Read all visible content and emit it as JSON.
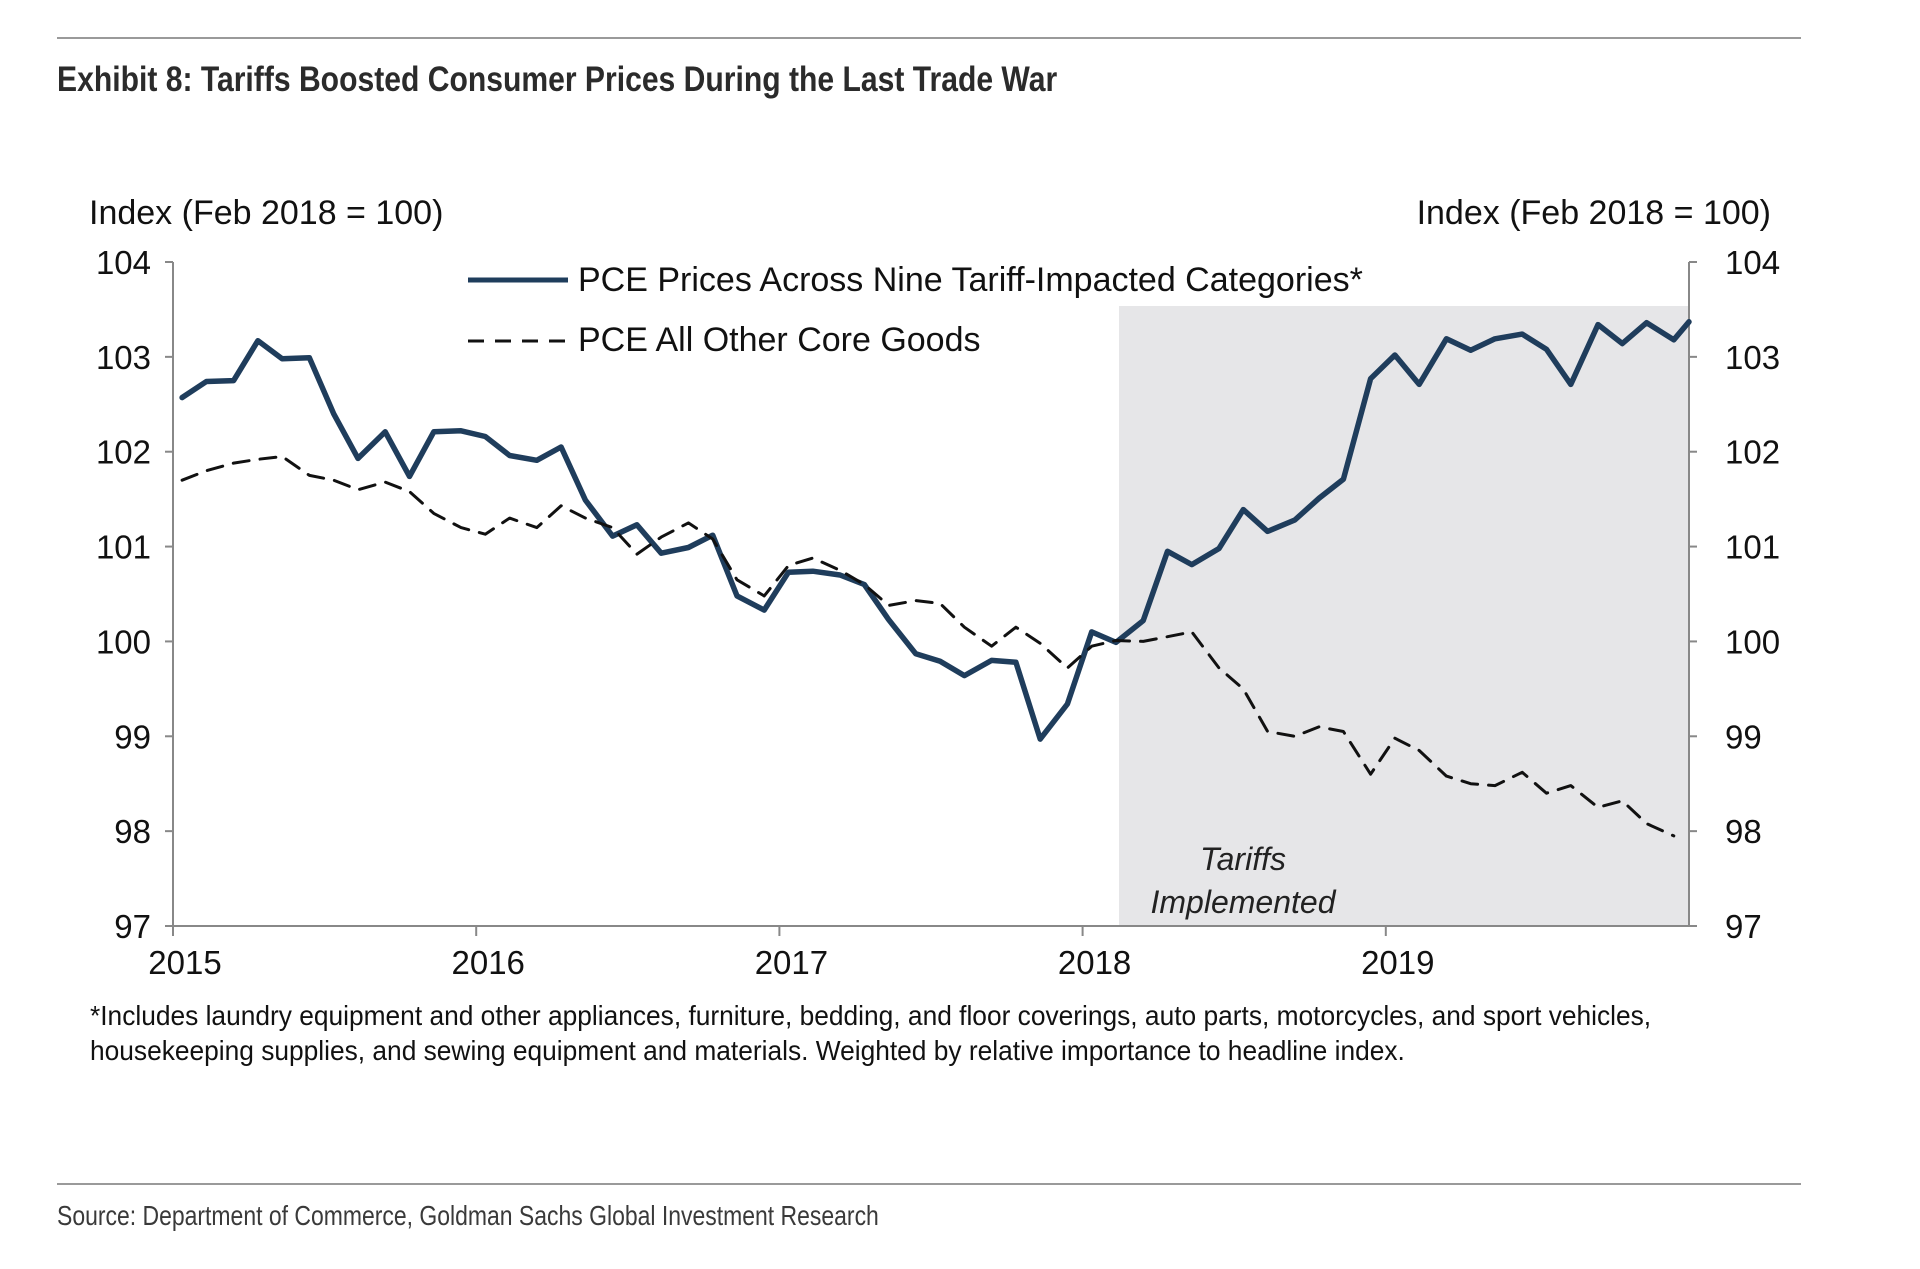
{
  "title": "Exhibit 8: Tariffs Boosted Consumer Prices During the Last Trade War",
  "footnote": "*Includes laundry equipment and other appliances, furniture, bedding, and floor coverings, auto parts, motorcycles, and sport vehicles, housekeeping supplies, and sewing equipment and materials. Weighted by relative importance to headline index.",
  "source": "Source: Department of Commerce, Goldman Sachs Global Investment Research",
  "colors": {
    "series1": "#1f3d5c",
    "series2": "#111111",
    "shade": "#e6e6e8",
    "axis": "#888888"
  },
  "chart_data": {
    "type": "line",
    "title": "Exhibit 8: Tariffs Boosted Consumer Prices During the Last Trade War",
    "ylabel_left": "Index (Feb 2018 = 100)",
    "ylabel_right": "Index (Feb 2018 = 100)",
    "xlim": [
      2015.0,
      2020.0
    ],
    "ylim": [
      97,
      104
    ],
    "yticks": [
      97,
      98,
      99,
      100,
      101,
      102,
      103,
      104
    ],
    "ytick_labels": [
      "97",
      "98",
      "99",
      "100",
      "101",
      "102",
      "103",
      "104"
    ],
    "xticks": [
      2015,
      2016,
      2017,
      2018,
      2019
    ],
    "xtick_labels": [
      "2015",
      "2016",
      "2017",
      "2018",
      "2019"
    ],
    "legend": [
      "PCE Prices Across Nine Tariff-Impacted Categories*",
      "PCE All Other Core Goods"
    ],
    "legend_position": "top-center",
    "shaded_region": {
      "from": 2018.12,
      "to": 2020.0,
      "label_line1": "Tariffs",
      "label_line2": "Implemented"
    },
    "series": [
      {
        "name": "PCE Prices Across Nine Tariff-Impacted Categories*",
        "style": "solid",
        "x": [
          2015.03,
          2015.11,
          2015.2,
          2015.28,
          2015.36,
          2015.45,
          2015.53,
          2015.61,
          2015.7,
          2015.78,
          2015.86,
          2015.95,
          2016.03,
          2016.11,
          2016.2,
          2016.28,
          2016.36,
          2016.45,
          2016.53,
          2016.61,
          2016.7,
          2016.78,
          2016.86,
          2016.95,
          2017.03,
          2017.11,
          2017.2,
          2017.28,
          2017.36,
          2017.45,
          2017.53,
          2017.61,
          2017.7,
          2017.78,
          2017.86,
          2017.95,
          2018.03,
          2018.11,
          2018.2,
          2018.28,
          2018.36,
          2018.45,
          2018.53,
          2018.61,
          2018.7,
          2018.78,
          2018.86,
          2018.95,
          2019.03,
          2019.11,
          2019.2,
          2019.28,
          2019.36,
          2019.45,
          2019.53,
          2019.61,
          2019.7,
          2019.78,
          2019.86,
          2019.95,
          2020.0
        ],
        "values": [
          102.57,
          102.74,
          102.75,
          103.17,
          102.98,
          102.99,
          102.4,
          101.93,
          102.21,
          101.74,
          102.21,
          102.22,
          102.16,
          101.96,
          101.91,
          102.05,
          101.49,
          101.11,
          101.23,
          100.93,
          100.99,
          101.12,
          100.48,
          100.33,
          100.73,
          100.74,
          100.7,
          100.6,
          100.23,
          99.87,
          99.79,
          99.64,
          99.8,
          99.78,
          98.97,
          99.34,
          100.1,
          99.99,
          100.22,
          100.95,
          100.81,
          100.98,
          101.39,
          101.16,
          101.28,
          101.51,
          101.71,
          102.77,
          103.02,
          102.71,
          103.19,
          103.07,
          103.19,
          103.24,
          103.08,
          102.71,
          103.34,
          103.14,
          103.36,
          103.18,
          103.37
        ]
      },
      {
        "name": "PCE All Other Core Goods",
        "style": "dashed",
        "x": [
          2015.03,
          2015.11,
          2015.2,
          2015.28,
          2015.36,
          2015.45,
          2015.53,
          2015.61,
          2015.7,
          2015.78,
          2015.86,
          2015.95,
          2016.03,
          2016.11,
          2016.2,
          2016.28,
          2016.36,
          2016.45,
          2016.53,
          2016.61,
          2016.7,
          2016.78,
          2016.86,
          2016.95,
          2017.03,
          2017.11,
          2017.2,
          2017.28,
          2017.36,
          2017.45,
          2017.53,
          2017.61,
          2017.7,
          2017.78,
          2017.86,
          2017.95,
          2018.03,
          2018.11,
          2018.2,
          2018.28,
          2018.36,
          2018.45,
          2018.53,
          2018.61,
          2018.7,
          2018.78,
          2018.86,
          2018.95,
          2019.03,
          2019.11,
          2019.2,
          2019.28,
          2019.36,
          2019.45,
          2019.53,
          2019.61,
          2019.7,
          2019.78,
          2019.86,
          2019.95
        ],
        "values": [
          101.7,
          101.8,
          101.88,
          101.92,
          101.95,
          101.75,
          101.7,
          101.6,
          101.68,
          101.58,
          101.35,
          101.2,
          101.13,
          101.3,
          101.2,
          101.43,
          101.3,
          101.2,
          100.92,
          101.1,
          101.25,
          101.08,
          100.65,
          100.48,
          100.8,
          100.88,
          100.75,
          100.6,
          100.38,
          100.43,
          100.4,
          100.15,
          99.95,
          100.15,
          99.98,
          99.72,
          99.95,
          100.01,
          100.0,
          100.05,
          100.1,
          99.72,
          99.5,
          99.05,
          99.0,
          99.1,
          99.05,
          98.6,
          98.98,
          98.85,
          98.58,
          98.5,
          98.48,
          98.62,
          98.4,
          98.48,
          98.25,
          98.32,
          98.08,
          97.95
        ]
      }
    ]
  }
}
